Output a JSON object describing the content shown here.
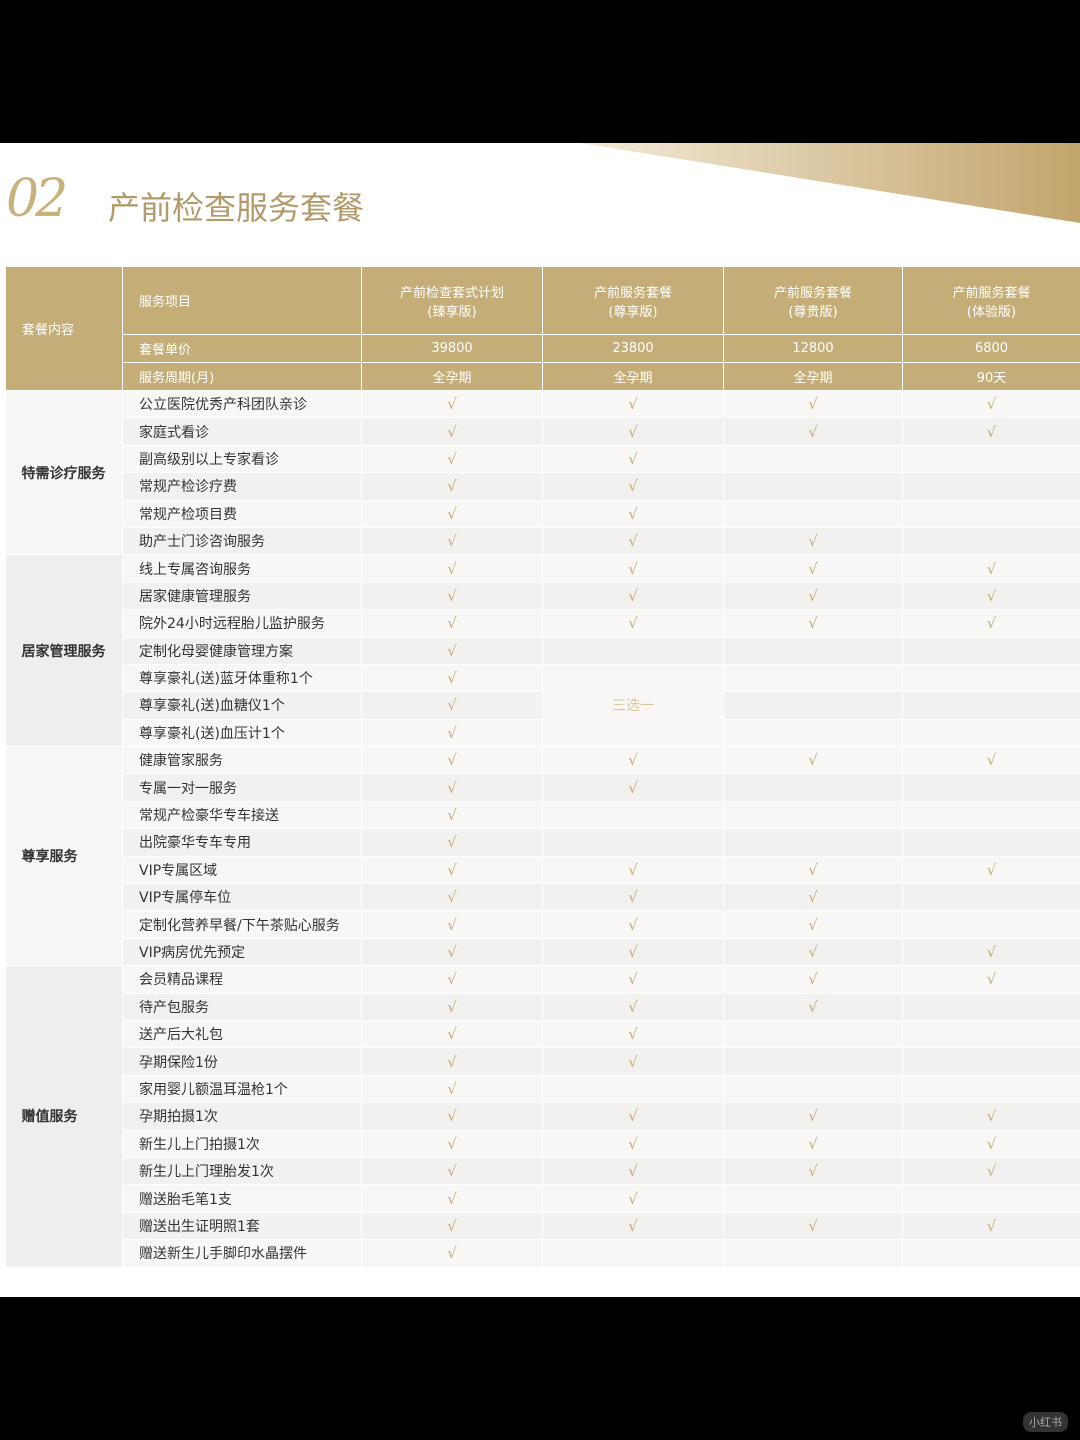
{
  "header": {
    "number": "02",
    "title": "产前检查服务套餐"
  },
  "table": {
    "corner": "套餐内容",
    "service_item": "服务项目",
    "price_label": "套餐单价",
    "period_label": "服务周期(月)",
    "plans": [
      {
        "name": "产前检查套式计划",
        "edition": "(臻享版)",
        "price": "39800",
        "period": "全孕期"
      },
      {
        "name": "产前服务套餐",
        "edition": "(尊享版)",
        "price": "23800",
        "period": "全孕期"
      },
      {
        "name": "产前服务套餐",
        "edition": "(尊贵版)",
        "price": "12800",
        "period": "全孕期"
      },
      {
        "name": "产前服务套餐",
        "edition": "(体验版)",
        "price": "6800",
        "period": "90天"
      }
    ],
    "check_mark": "√",
    "choose_one_note": "三选一",
    "groups": [
      {
        "name": "特需诊疗服务",
        "rows": [
          {
            "item": "公立医院优秀产科团队亲诊",
            "checks": [
              1,
              1,
              1,
              1
            ]
          },
          {
            "item": "家庭式看诊",
            "checks": [
              1,
              1,
              1,
              1
            ]
          },
          {
            "item": "副高级别以上专家看诊",
            "checks": [
              1,
              1,
              0,
              0
            ]
          },
          {
            "item": "常规产检诊疗费",
            "checks": [
              1,
              1,
              0,
              0
            ]
          },
          {
            "item": "常规产检项目费",
            "checks": [
              1,
              1,
              0,
              0
            ]
          },
          {
            "item": "助产士门诊咨询服务",
            "checks": [
              1,
              1,
              1,
              0
            ]
          }
        ]
      },
      {
        "name": "居家管理服务",
        "rows": [
          {
            "item": "线上专属咨询服务",
            "checks": [
              1,
              1,
              1,
              1
            ]
          },
          {
            "item": "居家健康管理服务",
            "checks": [
              1,
              1,
              1,
              1
            ]
          },
          {
            "item": "院外24小时远程胎儿监护服务",
            "checks": [
              1,
              1,
              1,
              1
            ]
          },
          {
            "item": "定制化母婴健康管理方案",
            "checks": [
              1,
              0,
              0,
              0
            ]
          },
          {
            "item": "尊享豪礼(送)蓝牙体重称1个",
            "checks": [
              1,
              0,
              0,
              0
            ]
          },
          {
            "item": "尊享豪礼(送)血糖仪1个",
            "checks": [
              1,
              0,
              0,
              0
            ]
          },
          {
            "item": "尊享豪礼(送)血压计1个",
            "checks": [
              1,
              0,
              0,
              0
            ]
          }
        ]
      },
      {
        "name": "尊享服务",
        "rows": [
          {
            "item": "健康管家服务",
            "checks": [
              1,
              1,
              1,
              1
            ]
          },
          {
            "item": "专属一对一服务",
            "checks": [
              1,
              1,
              0,
              0
            ]
          },
          {
            "item": "常规产检豪华专车接送",
            "checks": [
              1,
              0,
              0,
              0
            ]
          },
          {
            "item": "出院豪华专车专用",
            "checks": [
              1,
              0,
              0,
              0
            ]
          },
          {
            "item": "VIP专属区域",
            "checks": [
              1,
              1,
              1,
              1
            ]
          },
          {
            "item": "VIP专属停车位",
            "checks": [
              1,
              1,
              1,
              0
            ]
          },
          {
            "item": "定制化营养早餐/下午茶贴心服务",
            "checks": [
              1,
              1,
              1,
              0
            ]
          },
          {
            "item": "VIP病房优先预定",
            "checks": [
              1,
              1,
              1,
              1
            ]
          }
        ]
      },
      {
        "name": "赠值服务",
        "rows": [
          {
            "item": "会员精品课程",
            "checks": [
              1,
              1,
              1,
              1
            ]
          },
          {
            "item": "待产包服务",
            "checks": [
              1,
              1,
              1,
              0
            ]
          },
          {
            "item": "送产后大礼包",
            "checks": [
              1,
              1,
              0,
              0
            ]
          },
          {
            "item": "孕期保险1份",
            "checks": [
              1,
              1,
              0,
              0
            ]
          },
          {
            "item": "家用婴儿额温耳温枪1个",
            "checks": [
              1,
              0,
              0,
              0
            ]
          },
          {
            "item": "孕期拍摄1次",
            "checks": [
              1,
              1,
              1,
              1
            ]
          },
          {
            "item": "新生儿上门拍摄1次",
            "checks": [
              1,
              1,
              1,
              1
            ]
          },
          {
            "item": "新生儿上门理胎发1次",
            "checks": [
              1,
              1,
              1,
              1
            ]
          },
          {
            "item": "赠送胎毛笔1支",
            "checks": [
              1,
              1,
              0,
              0
            ]
          },
          {
            "item": "赠送出生证明照1套",
            "checks": [
              1,
              1,
              1,
              1
            ]
          },
          {
            "item": "赠送新生儿手脚印水晶摆件",
            "checks": [
              1,
              0,
              0,
              0
            ]
          }
        ]
      }
    ]
  },
  "watermark": "小红书",
  "colors": {
    "gold": "#c5ad78",
    "title": "#b39a6a"
  }
}
